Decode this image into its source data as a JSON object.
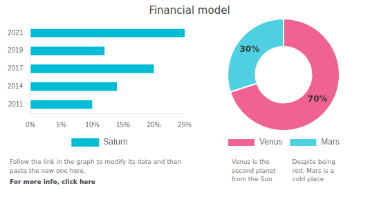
{
  "chart_data": [
    {
      "type": "bar",
      "title": "Financial model",
      "orientation": "horizontal",
      "categories": [
        "2011",
        "2014",
        "2017",
        "2019",
        "2021"
      ],
      "series": [
        {
          "name": "Saturn",
          "color": "#00bcd4",
          "values": [
            10,
            14,
            20,
            12,
            25
          ]
        }
      ],
      "xlim": [
        0,
        25
      ],
      "xticks": [
        {
          "value": 0,
          "label": "0%"
        },
        {
          "value": 5,
          "label": "5%"
        },
        {
          "value": 10,
          "label": "10%"
        },
        {
          "value": 15,
          "label": "15%"
        },
        {
          "value": 20,
          "label": "20%"
        },
        {
          "value": 25,
          "label": "25%"
        }
      ],
      "grid": false,
      "legend": "bottom",
      "annotations": [
        "Follow the link in the graph to modify its data and then\npaste the new one here. ",
        "For more info, click here"
      ]
    },
    {
      "type": "doughnut",
      "categories": [
        "Venus",
        "Mars"
      ],
      "values": [
        70,
        30
      ],
      "colors": [
        "#f06292",
        "#4dd0e1"
      ],
      "data_labels": true,
      "value_labels": [
        "70%",
        "30%"
      ],
      "legend": "bottom",
      "annotations": [
        "Venus is the\nsecond planet\nfrom the Sun",
        "Despite being\nred, Mars is a\ncold place"
      ]
    }
  ]
}
